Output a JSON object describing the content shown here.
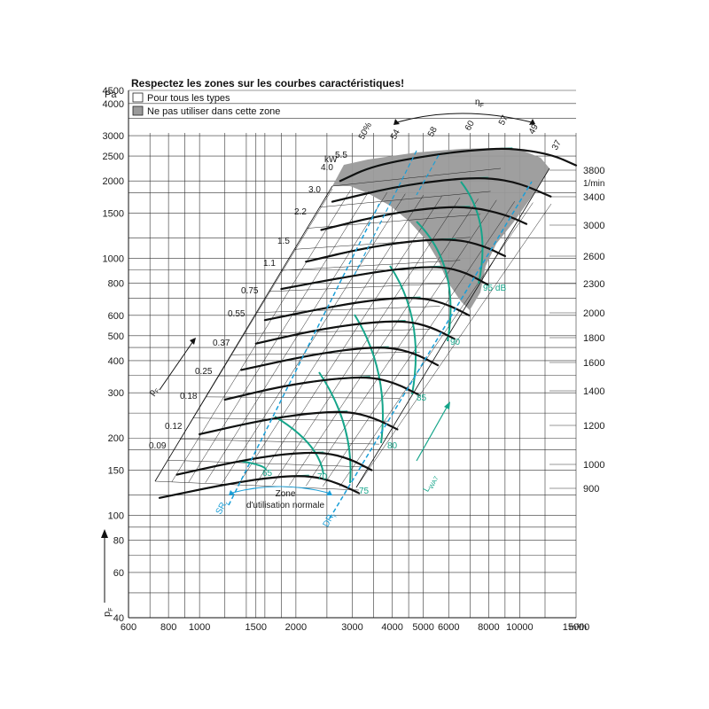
{
  "chart_data": {
    "type": "line",
    "title": "Respectez les zones sur les courbes caractéristiques!",
    "legend": [
      {
        "label": "Pour tous les types",
        "swatch": "#ffffff"
      },
      {
        "label": "Ne pas utiliser dans cette zone",
        "swatch": "#9a9a9a"
      }
    ],
    "x_axis": {
      "unit": "m³/h",
      "scale": "log",
      "range": [
        600,
        15000
      ],
      "ticks": [
        600,
        800,
        1000,
        1500,
        2000,
        3000,
        4000,
        5000,
        6000,
        8000,
        10000,
        15000
      ],
      "tick_labels": [
        "600",
        "800",
        "1000",
        "1500",
        "2000",
        "3000",
        "4000",
        "5000",
        "6000",
        "8000",
        "10000",
        "15000"
      ]
    },
    "y_axis": {
      "unit": "Pa",
      "label": "p",
      "label_sub": "F",
      "scale": "log",
      "range": [
        40,
        4500
      ],
      "ticks": [
        4500,
        4000,
        3000,
        2500,
        2000,
        1500,
        1000,
        800,
        600,
        500,
        400,
        300,
        200,
        150,
        100,
        80,
        60,
        40
      ],
      "tick_labels": [
        "4500",
        "4000",
        "3000",
        "2500",
        "2000",
        "1500",
        "1000",
        "800",
        "600",
        "500",
        "400",
        "300",
        "200",
        "150",
        "100",
        "80",
        "60",
        "40"
      ]
    },
    "rpm_axis": {
      "unit": "1/min",
      "values": [
        3800,
        3400,
        3000,
        2600,
        2300,
        2000,
        1800,
        1600,
        1400,
        1200,
        1000,
        900
      ],
      "labels": [
        "3800",
        "3400",
        "3000",
        "2600",
        "2300",
        "2000",
        "1800",
        "1600",
        "1400",
        "1200",
        "1000",
        "900"
      ]
    },
    "power_unit": "kW",
    "power_labels": [
      "4.0",
      "5.5",
      "3.0",
      "2.2",
      "1.5",
      "1.1",
      "0.75",
      "0.55",
      "0.37",
      "0.25",
      "0.18",
      "0.12",
      "0.09"
    ],
    "efficiency_label": "η",
    "efficiency_label_sub": "F",
    "efficiency_values": [
      "50%",
      "54",
      "58",
      "60",
      "57",
      "49",
      "37"
    ],
    "sound_labels": [
      "95 dB",
      "90",
      "85",
      "80",
      "75",
      "70",
      "65"
    ],
    "sound_axis_label": "L",
    "sound_axis_label_sub": "WA7",
    "pressure_arrow_label": "p",
    "pressure_arrow_sub": "F",
    "zone_label": [
      "Zone",
      "d'utilisation normale"
    ],
    "zone_bounds": [
      {
        "label": "SR",
        "sub": "r"
      },
      {
        "label": "DR",
        "sub": "r"
      }
    ],
    "curves_per_speed": [
      {
        "rpm": 3800,
        "q": [
          2750,
          3500,
          5500,
          7500,
          9500,
          12500,
          15000
        ],
        "p": [
          2000,
          2300,
          2540,
          2650,
          2680,
          2540,
          2300
        ]
      },
      {
        "rpm": 3400,
        "q": [
          2600,
          4000,
          6000,
          8000,
          10000,
          12500
        ],
        "p": [
          1660,
          1890,
          2030,
          2060,
          1960,
          1740
        ]
      },
      {
        "rpm": 3000,
        "q": [
          2400,
          3600,
          5200,
          7000,
          9000,
          10500
        ],
        "p": [
          1290,
          1460,
          1570,
          1590,
          1480,
          1360
        ]
      },
      {
        "rpm": 2600,
        "q": [
          2150,
          3200,
          4600,
          6300,
          7700,
          9000
        ],
        "p": [
          970,
          1090,
          1170,
          1190,
          1120,
          1020
        ]
      },
      {
        "rpm": 2300,
        "q": [
          1800,
          3000,
          4300,
          5700,
          6800,
          7950
        ],
        "p": [
          760,
          855,
          915,
          930,
          880,
          790
        ]
      },
      {
        "rpm": 2000,
        "q": [
          1600,
          2600,
          3700,
          4900,
          5900,
          6950
        ],
        "p": [
          575,
          650,
          695,
          705,
          665,
          600
        ]
      },
      {
        "rpm": 1800,
        "q": [
          1500,
          2300,
          3300,
          4400,
          5300,
          6250
        ],
        "p": [
          466,
          526,
          562,
          572,
          540,
          486
        ]
      },
      {
        "rpm": 1600,
        "q": [
          1350,
          2100,
          3000,
          3900,
          4700,
          5550
        ],
        "p": [
          368,
          415,
          445,
          452,
          427,
          384
        ]
      },
      {
        "rpm": 1400,
        "q": [
          1200,
          1800,
          2600,
          3400,
          4100,
          4850
        ],
        "p": [
          282,
          318,
          340,
          346,
          327,
          294
        ]
      },
      {
        "rpm": 1200,
        "q": [
          1000,
          1550,
          2200,
          2900,
          3500,
          4150
        ],
        "p": [
          207,
          234,
          250,
          254,
          240,
          216
        ]
      },
      {
        "rpm": 1000,
        "q": [
          850,
          1300,
          1850,
          2450,
          2950,
          3450
        ],
        "p": [
          144,
          162,
          174,
          176,
          166,
          150
        ]
      },
      {
        "rpm": 900,
        "q": [
          750,
          1200,
          1700,
          2200,
          2650,
          3150
        ],
        "p": [
          117,
          132,
          141,
          143,
          135,
          122
        ]
      }
    ],
    "grid": true
  }
}
